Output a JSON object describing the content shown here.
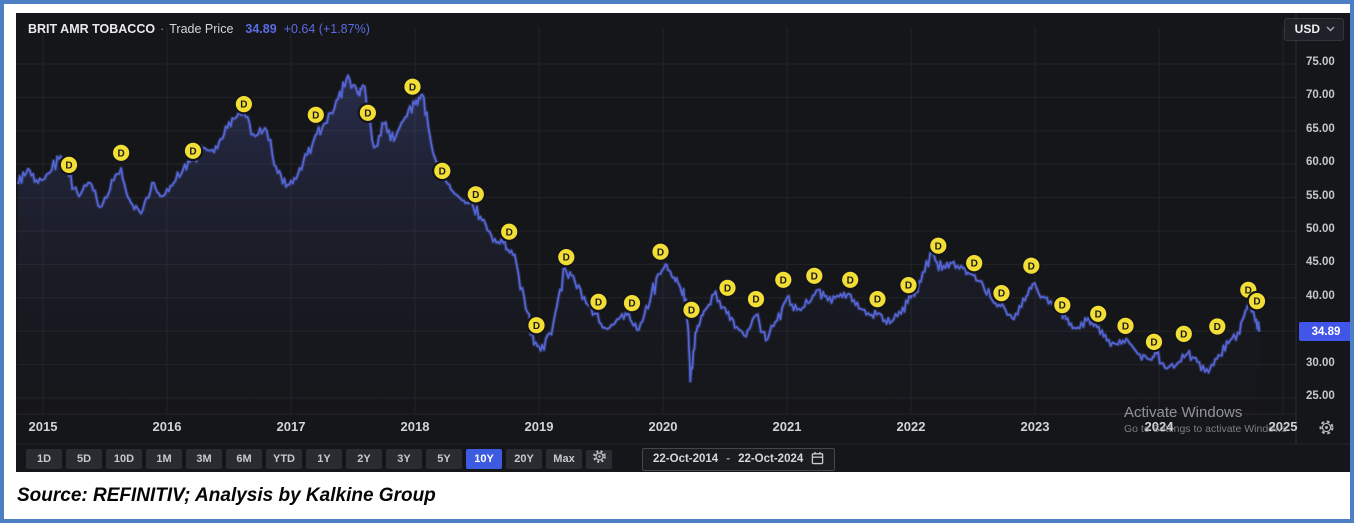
{
  "header": {
    "instrument": "BRIT AMR TOBACCO",
    "separator": "·",
    "series": "Trade Price",
    "price": "34.89",
    "change": "+0.64 (+1.87%)",
    "currency": "USD"
  },
  "y_axis": {
    "ticks": [
      "75.00",
      "70.00",
      "65.00",
      "60.00",
      "55.00",
      "50.00",
      "45.00",
      "40.00",
      "35.00",
      "30.00",
      "25.00"
    ],
    "last_price": "34.89"
  },
  "x_axis": {
    "years": [
      "2015",
      "2016",
      "2017",
      "2018",
      "2019",
      "2020",
      "2021",
      "2022",
      "2023",
      "2024",
      "2025"
    ]
  },
  "toolbar": {
    "ranges": [
      "1D",
      "5D",
      "10D",
      "1M",
      "3M",
      "6M",
      "YTD",
      "1Y",
      "2Y",
      "3Y",
      "5Y",
      "10Y",
      "20Y",
      "Max"
    ],
    "selected": "10Y",
    "date_from": "22-Oct-2014",
    "date_sep": "-",
    "date_to": "22-Oct-2024"
  },
  "watermark": {
    "line1": "Activate Windows",
    "line2": "Go to Settings to activate Windows"
  },
  "source": {
    "text": "Source: REFINITIV; Analysis by Kalkine Group"
  },
  "chart_data": {
    "type": "line",
    "title": "BRIT AMR TOBACCO Trade Price",
    "ylabel": "USD",
    "ylim": [
      25,
      77
    ],
    "xlim": [
      2014.8,
      2025.05
    ],
    "x_years": [
      2015,
      2016,
      2017,
      2018,
      2019,
      2020,
      2021,
      2022,
      2023,
      2024,
      2025
    ],
    "y_ticks": [
      75,
      70,
      65,
      60,
      55,
      50,
      45,
      40,
      35,
      30,
      25
    ],
    "grid": true,
    "last_price": 34.89,
    "colors": {
      "line": "#5465d6",
      "glow": "rgba(96,110,225,0.28)",
      "fill_top": "rgba(84,96,190,0.30)",
      "fill_bottom": "rgba(30,32,48,0.04)",
      "marker": "#f2de34",
      "badge": "#4155e8",
      "grid": "#232428"
    },
    "series": [
      {
        "name": "Trade Price",
        "points": [
          [
            2014.8,
            57.0
          ],
          [
            2014.88,
            59.3
          ],
          [
            2014.96,
            57.2
          ],
          [
            2015.04,
            58.6
          ],
          [
            2015.13,
            60.8
          ],
          [
            2015.21,
            58.2
          ],
          [
            2015.29,
            55.2
          ],
          [
            2015.38,
            57.2
          ],
          [
            2015.46,
            53.6
          ],
          [
            2015.54,
            56.2
          ],
          [
            2015.63,
            59.4
          ],
          [
            2015.71,
            54.2
          ],
          [
            2015.79,
            52.6
          ],
          [
            2015.88,
            57.2
          ],
          [
            2015.96,
            55.2
          ],
          [
            2016.04,
            56.8
          ],
          [
            2016.13,
            59.2
          ],
          [
            2016.21,
            60.6
          ],
          [
            2016.29,
            62.4
          ],
          [
            2016.38,
            61.8
          ],
          [
            2016.46,
            64.4
          ],
          [
            2016.54,
            66.8
          ],
          [
            2016.62,
            67.8
          ],
          [
            2016.71,
            64.2
          ],
          [
            2016.79,
            65.4
          ],
          [
            2016.88,
            59.6
          ],
          [
            2016.96,
            56.6
          ],
          [
            2017.04,
            57.8
          ],
          [
            2017.13,
            61.4
          ],
          [
            2017.21,
            64.6
          ],
          [
            2017.29,
            66.2
          ],
          [
            2017.38,
            69.8
          ],
          [
            2017.46,
            73.3
          ],
          [
            2017.54,
            70.5
          ],
          [
            2017.58,
            71.8
          ],
          [
            2017.67,
            62.5
          ],
          [
            2017.75,
            66.0
          ],
          [
            2017.83,
            63.5
          ],
          [
            2017.92,
            67.0
          ],
          [
            2018.0,
            69.0
          ],
          [
            2018.06,
            70.4
          ],
          [
            2018.13,
            63.2
          ],
          [
            2018.21,
            58.4
          ],
          [
            2018.29,
            56.2
          ],
          [
            2018.38,
            54.6
          ],
          [
            2018.46,
            54.2
          ],
          [
            2018.54,
            51.6
          ],
          [
            2018.63,
            48.4
          ],
          [
            2018.71,
            48.2
          ],
          [
            2018.79,
            46.4
          ],
          [
            2018.88,
            40.2
          ],
          [
            2018.96,
            33.0
          ],
          [
            2019.04,
            32.2
          ],
          [
            2019.13,
            37.6
          ],
          [
            2019.21,
            44.4
          ],
          [
            2019.29,
            42.4
          ],
          [
            2019.38,
            39.2
          ],
          [
            2019.46,
            37.6
          ],
          [
            2019.54,
            35.4
          ],
          [
            2019.63,
            36.8
          ],
          [
            2019.71,
            37.4
          ],
          [
            2019.79,
            35.2
          ],
          [
            2019.88,
            38.4
          ],
          [
            2019.96,
            43.5
          ],
          [
            2020.02,
            45.0
          ],
          [
            2020.08,
            43.0
          ],
          [
            2020.14,
            41.5
          ],
          [
            2020.19,
            39.5
          ],
          [
            2020.22,
            27.5
          ],
          [
            2020.27,
            35.0
          ],
          [
            2020.33,
            38.0
          ],
          [
            2020.41,
            40.5
          ],
          [
            2020.5,
            38.5
          ],
          [
            2020.58,
            35.5
          ],
          [
            2020.67,
            34.2
          ],
          [
            2020.75,
            37.4
          ],
          [
            2020.83,
            33.6
          ],
          [
            2020.92,
            36.6
          ],
          [
            2021.0,
            40.0
          ],
          [
            2021.08,
            38.2
          ],
          [
            2021.17,
            39.2
          ],
          [
            2021.25,
            41.2
          ],
          [
            2021.33,
            39.6
          ],
          [
            2021.42,
            40.2
          ],
          [
            2021.5,
            40.6
          ],
          [
            2021.58,
            38.4
          ],
          [
            2021.67,
            37.4
          ],
          [
            2021.75,
            37.6
          ],
          [
            2021.83,
            36.2
          ],
          [
            2021.92,
            37.6
          ],
          [
            2022.0,
            40.0
          ],
          [
            2022.08,
            42.4
          ],
          [
            2022.17,
            46.6
          ],
          [
            2022.25,
            44.2
          ],
          [
            2022.33,
            45.2
          ],
          [
            2022.42,
            44.4
          ],
          [
            2022.5,
            43.4
          ],
          [
            2022.58,
            42.0
          ],
          [
            2022.67,
            39.2
          ],
          [
            2022.75,
            38.6
          ],
          [
            2022.83,
            36.8
          ],
          [
            2022.92,
            39.6
          ],
          [
            2022.98,
            42.0
          ],
          [
            2023.08,
            40.0
          ],
          [
            2023.17,
            38.8
          ],
          [
            2023.25,
            36.8
          ],
          [
            2023.33,
            35.4
          ],
          [
            2023.42,
            36.6
          ],
          [
            2023.5,
            35.6
          ],
          [
            2023.58,
            33.6
          ],
          [
            2023.67,
            33.0
          ],
          [
            2023.75,
            33.6
          ],
          [
            2023.83,
            31.6
          ],
          [
            2023.92,
            30.8
          ],
          [
            2023.98,
            31.6
          ],
          [
            2024.06,
            29.4
          ],
          [
            2024.15,
            30.2
          ],
          [
            2024.23,
            31.6
          ],
          [
            2024.31,
            30.4
          ],
          [
            2024.4,
            28.8
          ],
          [
            2024.48,
            31.4
          ],
          [
            2024.56,
            33.2
          ],
          [
            2024.65,
            34.6
          ],
          [
            2024.72,
            39.3
          ],
          [
            2024.76,
            38.0
          ],
          [
            2024.81,
            34.89
          ]
        ]
      }
    ],
    "dividend_markers": [
      [
        2015.21,
        59.9
      ],
      [
        2015.63,
        61.7
      ],
      [
        2016.21,
        62.0
      ],
      [
        2016.62,
        69.0
      ],
      [
        2017.2,
        67.4
      ],
      [
        2017.62,
        67.7
      ],
      [
        2017.98,
        71.6
      ],
      [
        2018.22,
        59.0
      ],
      [
        2018.49,
        55.5
      ],
      [
        2018.76,
        49.9
      ],
      [
        2018.98,
        35.9
      ],
      [
        2019.22,
        46.1
      ],
      [
        2019.48,
        39.4
      ],
      [
        2019.75,
        39.2
      ],
      [
        2019.98,
        46.9
      ],
      [
        2020.23,
        38.2
      ],
      [
        2020.52,
        41.5
      ],
      [
        2020.75,
        39.8
      ],
      [
        2020.97,
        42.7
      ],
      [
        2021.22,
        43.3
      ],
      [
        2021.51,
        42.7
      ],
      [
        2021.73,
        39.8
      ],
      [
        2021.98,
        41.9
      ],
      [
        2022.22,
        47.8
      ],
      [
        2022.51,
        45.2
      ],
      [
        2022.73,
        40.7
      ],
      [
        2022.97,
        44.8
      ],
      [
        2023.22,
        38.9
      ],
      [
        2023.51,
        37.6
      ],
      [
        2023.73,
        35.8
      ],
      [
        2023.96,
        33.4
      ],
      [
        2024.2,
        34.6
      ],
      [
        2024.47,
        35.7
      ],
      [
        2024.72,
        41.2
      ],
      [
        2024.79,
        39.5
      ]
    ],
    "marker_label": "D"
  }
}
